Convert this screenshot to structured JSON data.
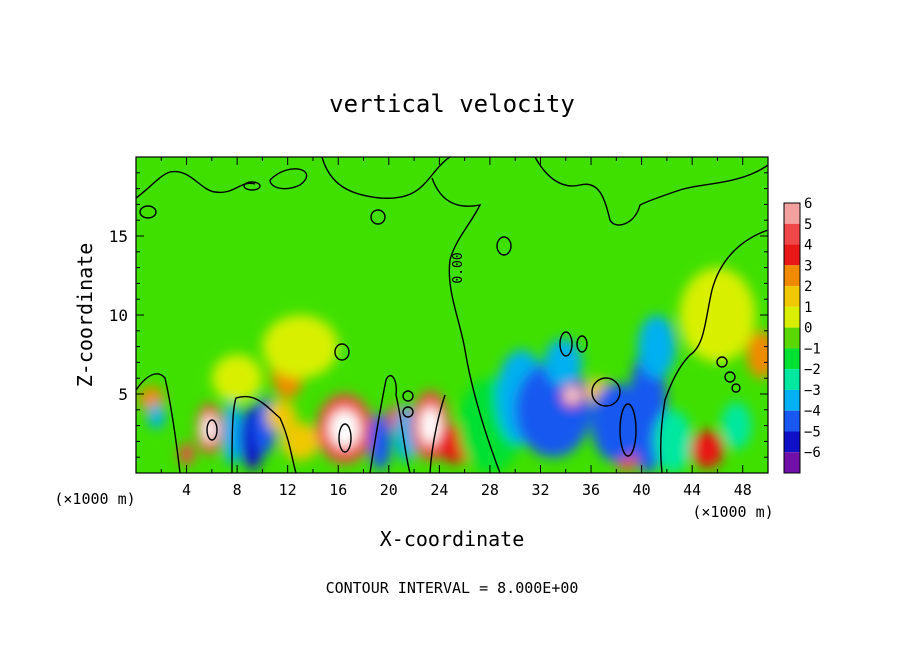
{
  "chart_data": {
    "type": "heatmap",
    "title": "vertical velocity",
    "xlabel": "X-coordinate",
    "ylabel": "Z-coordinate",
    "x_unit_left": "(×1000 m)",
    "x_unit_right": "(×1000 m)",
    "xlim": [
      0,
      50
    ],
    "ylim": [
      0,
      20
    ],
    "xticks": [
      "4",
      "8",
      "12",
      "16",
      "20",
      "24",
      "28",
      "32",
      "36",
      "40",
      "44",
      "48"
    ],
    "xtick_values": [
      4,
      8,
      12,
      16,
      20,
      24,
      28,
      32,
      36,
      40,
      44,
      48
    ],
    "yticks": [
      "5",
      "10",
      "15"
    ],
    "ytick_values": [
      5,
      10,
      15
    ],
    "colorbar": {
      "labels": [
        "6",
        "5",
        "4",
        "3",
        "2",
        "1",
        "0",
        "−1",
        "−2",
        "−3",
        "−4",
        "−5",
        "−6"
      ],
      "values": [
        6,
        5,
        4,
        3,
        2,
        1,
        0,
        -1,
        -2,
        -3,
        -4,
        -5,
        -6
      ],
      "colors": [
        "#f2a0a0",
        "#f04848",
        "#e81818",
        "#f08a00",
        "#f0c800",
        "#d8f000",
        "#58d800",
        "#00e030",
        "#00e8a0",
        "#00b0f0",
        "#1858f0",
        "#1010c8",
        "#7010a8"
      ]
    },
    "contour_label": "0.00",
    "footer": "CONTOUR INTERVAL = 8.000E+00",
    "cells": [
      {
        "x": 1.2,
        "z": 4.7,
        "w": 3,
        "dx": 1.0,
        "dz": 0.8
      },
      {
        "x": 1.6,
        "z": 3.6,
        "w": -3,
        "dx": 0.7,
        "dz": 0.8
      },
      {
        "x": 4.0,
        "z": 1.2,
        "w": 5,
        "dx": 0.6,
        "dz": 0.7
      },
      {
        "x": 5.8,
        "z": 2.8,
        "w": 6,
        "dx": 1.0,
        "dz": 1.6
      },
      {
        "x": 7.6,
        "z": 2.5,
        "w": -3,
        "dx": 0.8,
        "dz": 2.0
      },
      {
        "x": 9.2,
        "z": 2.2,
        "w": -5,
        "dx": 1.0,
        "dz": 2.0
      },
      {
        "x": 10.2,
        "z": 3.0,
        "w": -4,
        "dx": 0.9,
        "dz": 1.8
      },
      {
        "x": 11.5,
        "z": 3.6,
        "w": 2,
        "dx": 1.2,
        "dz": 1.0
      },
      {
        "x": 12.0,
        "z": 6.5,
        "w": 3,
        "dx": 1.3,
        "dz": 1.8
      },
      {
        "x": 13.0,
        "z": 2.0,
        "w": 2,
        "dx": 1.5,
        "dz": 1.2
      },
      {
        "x": 16.5,
        "z": 2.8,
        "w": 6,
        "dx": 2.2,
        "dz": 2.2
      },
      {
        "x": 19.3,
        "z": 2.0,
        "w": -4,
        "dx": 0.9,
        "dz": 1.8
      },
      {
        "x": 20.5,
        "z": 3.5,
        "w": 5,
        "dx": 0.6,
        "dz": 0.8
      },
      {
        "x": 21.4,
        "z": 2.5,
        "w": -3,
        "dx": 0.9,
        "dz": 1.8
      },
      {
        "x": 23.3,
        "z": 3.0,
        "w": 6,
        "dx": 1.5,
        "dz": 2.2
      },
      {
        "x": 25.4,
        "z": 1.8,
        "w": 4,
        "dx": 1.6,
        "dz": 1.2
      },
      {
        "x": 28.0,
        "z": 3.0,
        "w": -1,
        "dx": 2.5,
        "dz": 3.0
      },
      {
        "x": 30.5,
        "z": 4.8,
        "w": -3,
        "dx": 2.0,
        "dz": 3.0
      },
      {
        "x": 33.0,
        "z": 4.0,
        "w": -4,
        "dx": 3.0,
        "dz": 3.0
      },
      {
        "x": 34.5,
        "z": 4.9,
        "w": 6,
        "dx": 0.8,
        "dz": 0.7
      },
      {
        "x": 33.8,
        "z": 7.0,
        "w": -3,
        "dx": 1.5,
        "dz": 1.5
      },
      {
        "x": 36.5,
        "z": 5.2,
        "w": 2,
        "dx": 1.0,
        "dz": 0.8
      },
      {
        "x": 38.8,
        "z": 2.3,
        "w": 6,
        "dx": 1.3,
        "dz": 2.2
      },
      {
        "x": 38.0,
        "z": 3.2,
        "w": -4,
        "dx": 2.0,
        "dz": 2.5
      },
      {
        "x": 40.5,
        "z": 4.0,
        "w": -4,
        "dx": 1.5,
        "dz": 4.0
      },
      {
        "x": 41.2,
        "z": 8.0,
        "w": -3,
        "dx": 1.5,
        "dz": 2.0
      },
      {
        "x": 42.5,
        "z": 2.0,
        "w": -2,
        "dx": 1.5,
        "dz": 2.0
      },
      {
        "x": 45.2,
        "z": 1.5,
        "w": 4,
        "dx": 1.3,
        "dz": 1.2
      },
      {
        "x": 47.5,
        "z": 3.0,
        "w": -2,
        "dx": 1.2,
        "dz": 1.5
      },
      {
        "x": 49.5,
        "z": 7.5,
        "w": 3,
        "dx": 1.2,
        "dz": 1.5
      },
      {
        "x": 46.0,
        "z": 10.0,
        "w": 1,
        "dx": 3.0,
        "dz": 3.0
      },
      {
        "x": 13.0,
        "z": 8.0,
        "w": 1,
        "dx": 3.0,
        "dz": 2.0
      },
      {
        "x": 8.0,
        "z": 6.0,
        "w": 1,
        "dx": 2.0,
        "dz": 1.5
      }
    ]
  }
}
